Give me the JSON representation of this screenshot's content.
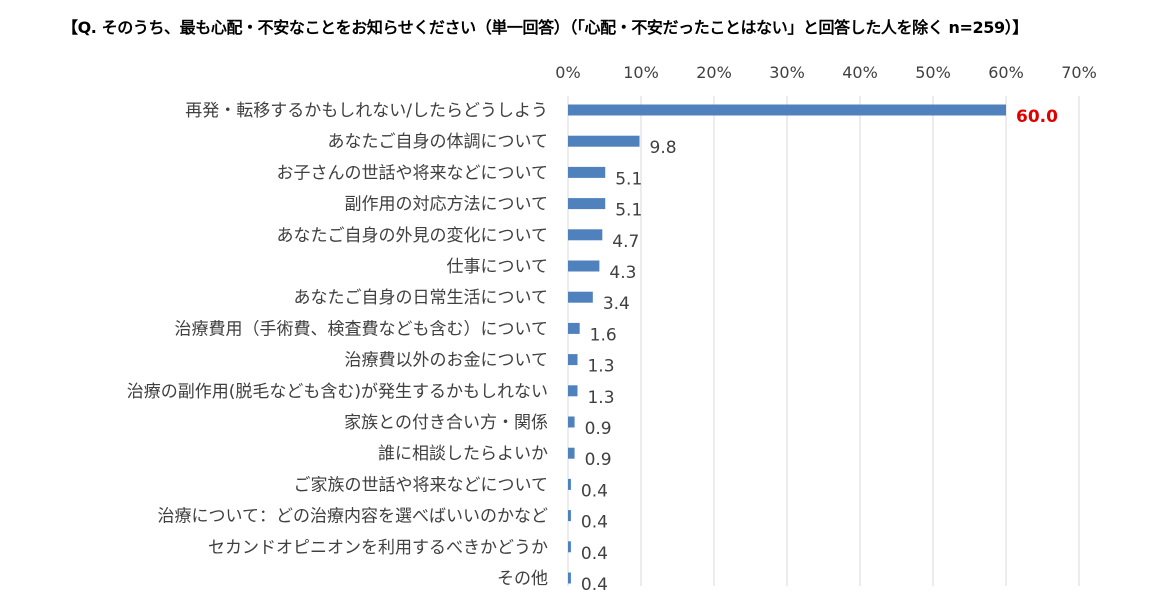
{
  "chart_data": {
    "type": "bar",
    "orientation": "horizontal",
    "title": "【Q. そのうち、最も心配・不安なことをお知らせください（単一回答）（「心配・不安だったことはない」と回答した人を除く n=259）】",
    "categories": [
      "再発・転移するかもしれない/したらどうしよう",
      "あなたご自身の体調について",
      "お子さんの世話や将来などについて",
      "副作用の対応方法について",
      "あなたご自身の外見の変化について",
      "仕事について",
      "あなたご自身の日常生活について",
      "治療費用（手術費、検査費なども含む）について",
      "治療費以外のお金について",
      "治療の副作用(脱毛なども含む)が発生するかもしれない",
      "家族との付き合い方・関係",
      "誰に相談したらよいか",
      "ご家族の世話や将来などについて",
      "治療について：どの治療内容を選べばいいのかなど",
      "セカンドオピニオンを利用するべきかどうか",
      "その他"
    ],
    "values": [
      60.0,
      9.8,
      5.1,
      5.1,
      4.7,
      4.3,
      3.4,
      1.6,
      1.3,
      1.3,
      0.9,
      0.9,
      0.4,
      0.4,
      0.4,
      0.4
    ],
    "value_labels": [
      "60.0",
      "9.8",
      "5.1",
      "5.1",
      "4.7",
      "4.3",
      "3.4",
      "1.6",
      "1.3",
      "1.3",
      "0.9",
      "0.9",
      "0.4",
      "0.4",
      "0.4",
      "0.4"
    ],
    "xlim": [
      0,
      70
    ],
    "x_ticks": [
      0,
      10,
      20,
      30,
      40,
      50,
      60,
      70
    ],
    "x_tick_labels": [
      "0%",
      "10%",
      "20%",
      "30%",
      "40%",
      "50%",
      "60%",
      "70%"
    ],
    "x_axis_position": "top",
    "grid": true,
    "legend": "none",
    "bar_color": "#4f81bd",
    "grid_color": "#d9d9d9",
    "highlight_label_color": "#e00000",
    "highlight_index": 0
  }
}
